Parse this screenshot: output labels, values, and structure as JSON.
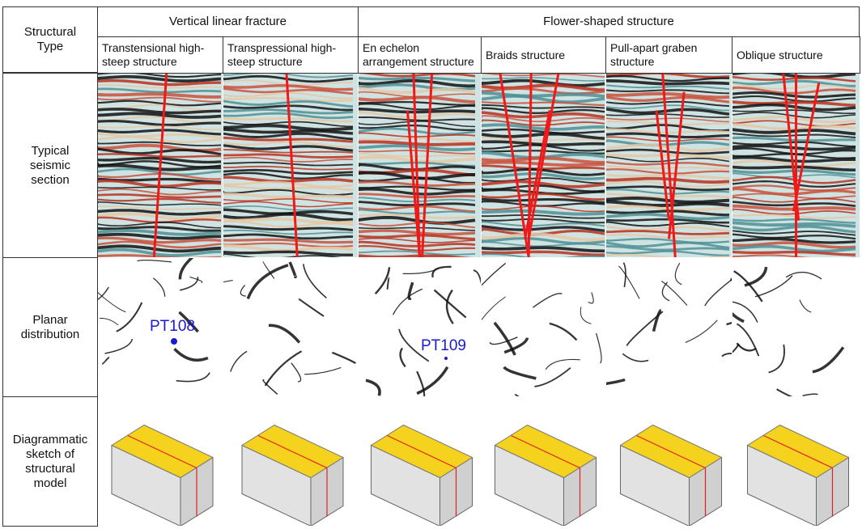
{
  "table": {
    "corner": "Structural Type",
    "groups": [
      "Vertical linear fracture",
      "Flower-shaped structure"
    ],
    "columns": [
      "Transtensional high-steep structure",
      "Transpressional high-steep structure",
      "En echelon arrangement structure",
      "Braids structure",
      "Pull-apart graben structure",
      "Oblique structure"
    ],
    "rows": [
      "Typical seismic section",
      "Planar distribution",
      "Diagrammatic sketch of structural model"
    ]
  },
  "annotations": [
    "PT108",
    "PT109"
  ]
}
